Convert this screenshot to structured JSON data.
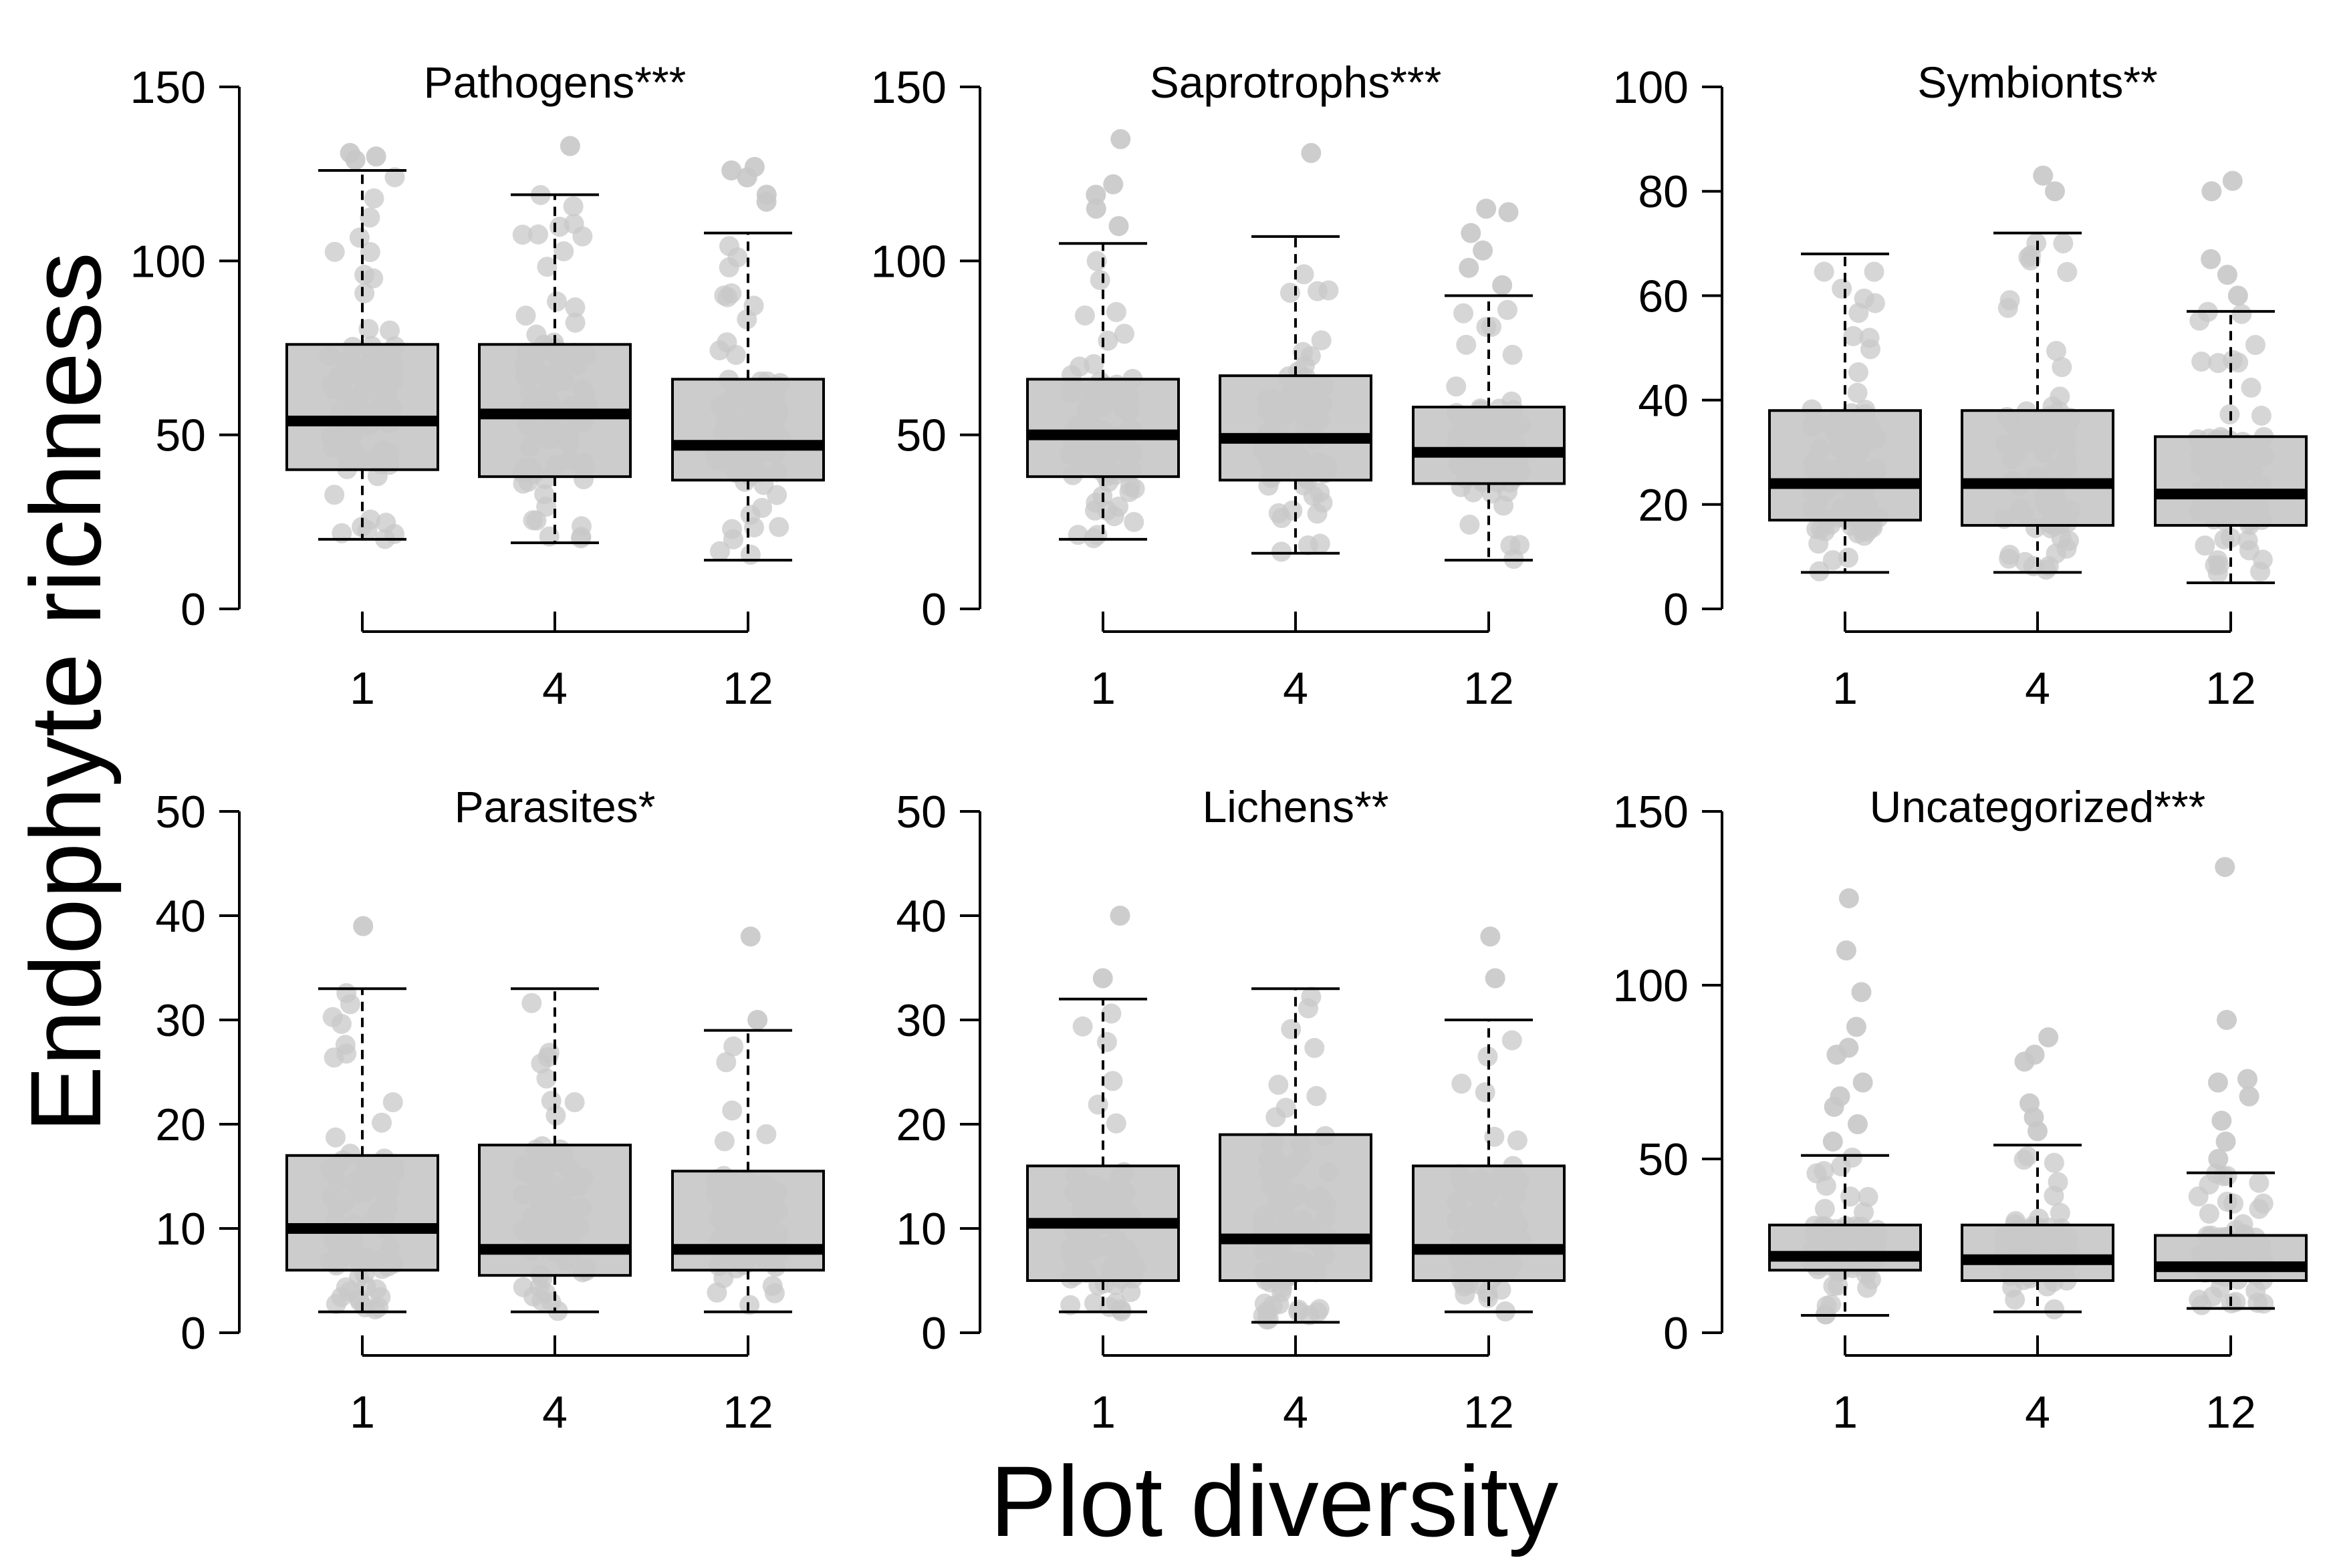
{
  "chart_data": {
    "type": "boxplot",
    "ylabel": "Endophyte richness",
    "xlabel": "Plot diversity",
    "categories": [
      "1",
      "4",
      "12"
    ],
    "panels": [
      {
        "title": "Pathogens***",
        "ylim": [
          0,
          150
        ],
        "yticks": [
          0,
          50,
          100,
          150
        ],
        "boxes": [
          {
            "category": "1",
            "min": 20,
            "q1": 40,
            "median": 54,
            "q3": 76,
            "max": 126,
            "outliers": [
              129,
              130,
              131
            ]
          },
          {
            "category": "4",
            "min": 19,
            "q1": 38,
            "median": 56,
            "q3": 76,
            "max": 119,
            "outliers": [
              133
            ]
          },
          {
            "category": "12",
            "min": 14,
            "q1": 37,
            "median": 47,
            "q3": 66,
            "max": 108,
            "outliers": [
              117,
              119,
              124,
              126,
              127
            ]
          }
        ]
      },
      {
        "title": "Saprotrophs***",
        "ylim": [
          0,
          150
        ],
        "yticks": [
          0,
          50,
          100,
          150
        ],
        "boxes": [
          {
            "category": "1",
            "min": 20,
            "q1": 38,
            "median": 50,
            "q3": 66,
            "max": 105,
            "outliers": [
              110,
              115,
              119,
              122,
              135
            ]
          },
          {
            "category": "4",
            "min": 16,
            "q1": 37,
            "median": 49,
            "q3": 67,
            "max": 107,
            "outliers": [
              131
            ]
          },
          {
            "category": "12",
            "min": 14,
            "q1": 36,
            "median": 45,
            "q3": 58,
            "max": 90,
            "outliers": [
              93,
              98,
              103,
              108,
              114,
              115
            ]
          }
        ]
      },
      {
        "title": "Symbionts**",
        "ylim": [
          0,
          100
        ],
        "yticks": [
          0,
          20,
          40,
          60,
          80,
          100
        ],
        "boxes": [
          {
            "category": "1",
            "min": 7,
            "q1": 17,
            "median": 24,
            "q3": 38,
            "max": 68,
            "outliers": []
          },
          {
            "category": "4",
            "min": 7,
            "q1": 16,
            "median": 24,
            "q3": 38,
            "max": 72,
            "outliers": [
              80,
              83
            ]
          },
          {
            "category": "12",
            "min": 5,
            "q1": 16,
            "median": 22,
            "q3": 33,
            "max": 57,
            "outliers": [
              60,
              64,
              67,
              80,
              82
            ]
          }
        ]
      },
      {
        "title": "Parasites*",
        "ylim": [
          0,
          50
        ],
        "yticks": [
          0,
          10,
          20,
          30,
          40,
          50
        ],
        "boxes": [
          {
            "category": "1",
            "min": 2,
            "q1": 6,
            "median": 10,
            "q3": 17,
            "max": 33,
            "outliers": [
              39
            ]
          },
          {
            "category": "4",
            "min": 2,
            "q1": 5.5,
            "median": 8,
            "q3": 18,
            "max": 33,
            "outliers": []
          },
          {
            "category": "12",
            "min": 2,
            "q1": 6,
            "median": 8,
            "q3": 15.5,
            "max": 29,
            "outliers": [
              30,
              38
            ]
          }
        ]
      },
      {
        "title": "Lichens**",
        "ylim": [
          0,
          50
        ],
        "yticks": [
          0,
          10,
          20,
          30,
          40,
          50
        ],
        "boxes": [
          {
            "category": "1",
            "min": 2,
            "q1": 5,
            "median": 10.5,
            "q3": 16,
            "max": 32,
            "outliers": [
              34,
              40
            ]
          },
          {
            "category": "4",
            "min": 1,
            "q1": 5,
            "median": 9,
            "q3": 19,
            "max": 33,
            "outliers": []
          },
          {
            "category": "12",
            "min": 2,
            "q1": 5,
            "median": 8,
            "q3": 16,
            "max": 30,
            "outliers": [
              34,
              38
            ]
          }
        ]
      },
      {
        "title": "Uncategorized***",
        "ylim": [
          0,
          150
        ],
        "yticks": [
          0,
          50,
          100,
          150
        ],
        "boxes": [
          {
            "category": "1",
            "min": 5,
            "q1": 18,
            "median": 22,
            "q3": 31,
            "max": 51,
            "outliers": [
              55,
              60,
              65,
              68,
              72,
              80,
              82,
              88,
              98,
              110,
              125
            ]
          },
          {
            "category": "4",
            "min": 6,
            "q1": 15,
            "median": 21,
            "q3": 31,
            "max": 54,
            "outliers": [
              58,
              62,
              66,
              78,
              80,
              85
            ]
          },
          {
            "category": "12",
            "min": 7,
            "q1": 15,
            "median": 19,
            "q3": 28,
            "max": 46,
            "outliers": [
              50,
              55,
              61,
              68,
              72,
              73,
              90,
              134
            ]
          }
        ]
      }
    ]
  },
  "colors": {
    "box_fill": "#cccccc",
    "point": "#c8c8c8",
    "line": "#000000",
    "background": "#ffffff"
  }
}
